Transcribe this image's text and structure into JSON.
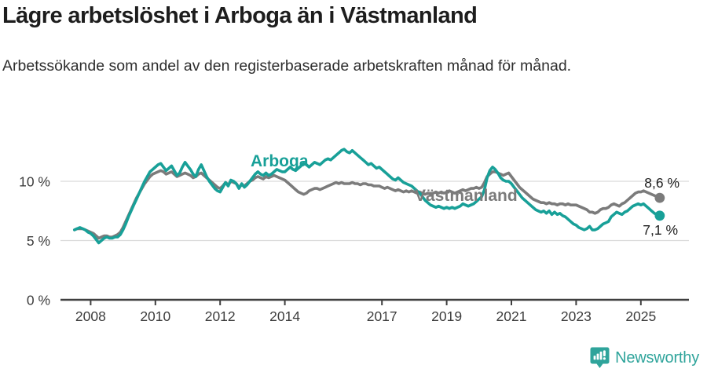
{
  "header": {
    "title": "Lägre arbetslöshet i Arboga än i Västmanland",
    "subtitle": "Arbetssökande som andel av den registerbaserade arbetskraften månad för månad."
  },
  "chart_data": {
    "type": "line",
    "unit": "%",
    "grid": "horizontal",
    "x_start": {
      "year": 2007,
      "month": 7
    },
    "months_per_point": 1,
    "x_tick_years": [
      2008,
      2010,
      2012,
      2014,
      2017,
      2019,
      2021,
      2023,
      2025
    ],
    "y_ticks": [
      0,
      5,
      10
    ],
    "y_tick_suffix": " %",
    "ylim": [
      0,
      13.5
    ],
    "axis_color": "#3f3f3f",
    "grid_color": "#dadada",
    "tick_label_color": "#3d3d3d",
    "series": [
      {
        "name": "Arboga",
        "color": "#18a098",
        "end_label": "7,1 %",
        "end_value": 7.1,
        "values": [
          5.9,
          6.0,
          6.1,
          6.0,
          5.9,
          5.7,
          5.6,
          5.4,
          5.1,
          4.8,
          5.0,
          5.2,
          5.3,
          5.2,
          5.2,
          5.3,
          5.3,
          5.5,
          5.9,
          6.4,
          7.0,
          7.5,
          8.0,
          8.5,
          9.0,
          9.5,
          10.0,
          10.4,
          10.8,
          11.0,
          11.2,
          11.4,
          11.5,
          11.2,
          10.9,
          11.1,
          11.3,
          10.9,
          10.5,
          10.7,
          11.2,
          11.6,
          11.3,
          11.0,
          10.6,
          10.4,
          11.0,
          11.4,
          10.9,
          10.4,
          10.0,
          9.7,
          9.4,
          9.2,
          9.1,
          9.5,
          9.9,
          9.6,
          10.1,
          10.0,
          9.8,
          9.4,
          9.8,
          9.5,
          9.7,
          10.0,
          10.3,
          10.6,
          10.8,
          10.6,
          10.5,
          10.7,
          10.5,
          10.6,
          10.8,
          11.0,
          10.9,
          10.8,
          10.8,
          11.0,
          11.2,
          11.0,
          10.9,
          11.1,
          11.3,
          11.5,
          11.4,
          11.2,
          11.4,
          11.6,
          11.5,
          11.4,
          11.6,
          11.8,
          11.9,
          11.8,
          12.0,
          12.2,
          12.4,
          12.6,
          12.7,
          12.5,
          12.4,
          12.6,
          12.4,
          12.2,
          12.0,
          11.8,
          11.6,
          11.4,
          11.5,
          11.3,
          11.1,
          11.2,
          11.0,
          10.8,
          10.6,
          10.4,
          10.2,
          10.1,
          10.3,
          10.1,
          9.9,
          9.8,
          9.7,
          9.6,
          9.4,
          9.2,
          9.0,
          8.7,
          8.4,
          8.2,
          8.0,
          7.9,
          7.8,
          7.9,
          7.8,
          7.7,
          7.8,
          7.7,
          7.8,
          7.7,
          7.8,
          7.9,
          8.1,
          8.0,
          7.9,
          8.0,
          8.1,
          8.3,
          8.5,
          8.7,
          9.3,
          10.3,
          10.9,
          11.2,
          11.0,
          10.7,
          10.3,
          10.1,
          10.0,
          10.0,
          9.8,
          9.5,
          9.2,
          8.9,
          8.6,
          8.4,
          8.2,
          8.0,
          7.8,
          7.6,
          7.5,
          7.4,
          7.5,
          7.3,
          7.5,
          7.2,
          7.4,
          7.2,
          7.3,
          7.1,
          7.0,
          6.8,
          6.6,
          6.4,
          6.3,
          6.1,
          6.0,
          5.9,
          6.0,
          6.2,
          5.9,
          5.9,
          6.0,
          6.2,
          6.4,
          6.5,
          6.6,
          7.0,
          7.2,
          7.4,
          7.3,
          7.2,
          7.4,
          7.5,
          7.7,
          7.9,
          8.0,
          8.1,
          8.0,
          8.1,
          7.9,
          7.7,
          7.5,
          7.3,
          7.2,
          7.1
        ]
      },
      {
        "name": "Västmanland",
        "color": "#7b7b7b",
        "end_label": "8,6 %",
        "end_value": 8.6,
        "values": [
          5.9,
          6.0,
          6.0,
          6.0,
          5.9,
          5.8,
          5.7,
          5.6,
          5.4,
          5.2,
          5.3,
          5.4,
          5.4,
          5.3,
          5.3,
          5.4,
          5.5,
          5.7,
          6.1,
          6.6,
          7.1,
          7.6,
          8.1,
          8.6,
          9.0,
          9.4,
          9.8,
          10.1,
          10.4,
          10.6,
          10.7,
          10.8,
          10.9,
          10.8,
          10.6,
          10.7,
          10.8,
          10.6,
          10.4,
          10.5,
          10.6,
          10.7,
          10.6,
          10.5,
          10.3,
          10.4,
          10.6,
          10.7,
          10.5,
          10.3,
          10.1,
          9.9,
          9.7,
          9.5,
          9.4,
          9.6,
          9.9,
          9.7,
          10.0,
          9.9,
          9.8,
          9.5,
          9.7,
          9.6,
          9.8,
          10.0,
          10.1,
          10.3,
          10.4,
          10.3,
          10.2,
          10.4,
          10.3,
          10.4,
          10.5,
          10.4,
          10.3,
          10.2,
          10.1,
          9.9,
          9.7,
          9.5,
          9.3,
          9.1,
          9.0,
          8.9,
          9.0,
          9.2,
          9.3,
          9.4,
          9.4,
          9.3,
          9.4,
          9.5,
          9.6,
          9.7,
          9.8,
          9.9,
          9.8,
          9.9,
          9.8,
          9.8,
          9.8,
          9.9,
          9.8,
          9.8,
          9.7,
          9.8,
          9.8,
          9.7,
          9.7,
          9.6,
          9.6,
          9.6,
          9.5,
          9.4,
          9.5,
          9.4,
          9.3,
          9.2,
          9.3,
          9.2,
          9.1,
          9.2,
          9.1,
          9.2,
          9.1,
          9.0,
          9.1,
          9.0,
          8.9,
          9.0,
          8.9,
          9.0,
          9.1,
          9.0,
          9.1,
          9.0,
          9.1,
          9.2,
          9.1,
          9.0,
          9.1,
          9.2,
          9.3,
          9.2,
          9.3,
          9.4,
          9.4,
          9.5,
          9.4,
          9.5,
          9.9,
          10.4,
          10.6,
          10.8,
          10.8,
          10.7,
          10.6,
          10.5,
          10.6,
          10.7,
          10.4,
          10.1,
          9.8,
          9.5,
          9.3,
          9.1,
          8.9,
          8.7,
          8.5,
          8.4,
          8.3,
          8.2,
          8.2,
          8.1,
          8.2,
          8.1,
          8.1,
          8.0,
          8.1,
          8.1,
          8.0,
          8.1,
          8.0,
          8.0,
          8.0,
          7.9,
          7.8,
          7.7,
          7.6,
          7.4,
          7.4,
          7.3,
          7.4,
          7.6,
          7.7,
          7.7,
          7.8,
          8.0,
          8.1,
          8.0,
          7.9,
          8.1,
          8.2,
          8.4,
          8.6,
          8.8,
          9.0,
          9.1,
          9.1,
          9.2,
          9.1,
          9.0,
          8.9,
          8.8,
          8.7,
          8.6
        ]
      }
    ]
  },
  "footer": {
    "brand": "Newsworthy",
    "brand_color": "#2fa49b"
  }
}
